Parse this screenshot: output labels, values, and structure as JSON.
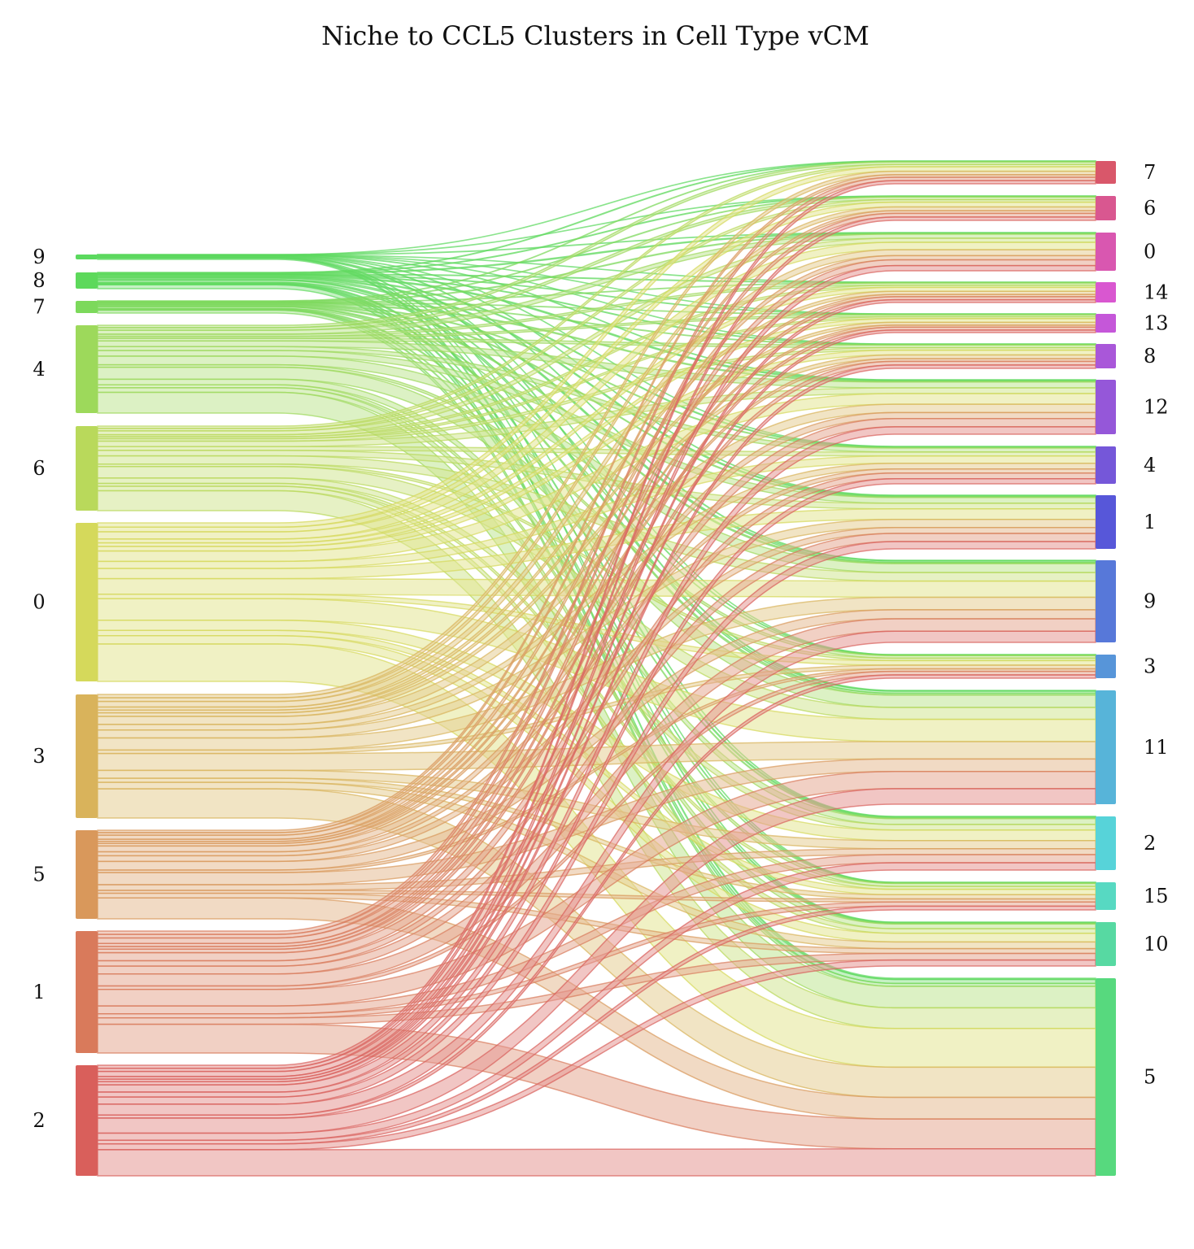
{
  "title": "Niche to CCL5 Clusters in Cell Type vCM",
  "diagram": {
    "type": "sankey",
    "left_nodes": [
      {
        "id": "9",
        "label": "9",
        "color": "#5bd95e"
      },
      {
        "id": "8",
        "label": "8",
        "color": "#5dd95b"
      },
      {
        "id": "7",
        "label": "7",
        "color": "#7cd95b"
      },
      {
        "id": "4",
        "label": "4",
        "color": "#9dd95b"
      },
      {
        "id": "6",
        "label": "6",
        "color": "#b9d95b"
      },
      {
        "id": "0",
        "label": "0",
        "color": "#d5d95b"
      },
      {
        "id": "3",
        "label": "3",
        "color": "#d9b35b"
      },
      {
        "id": "5",
        "label": "5",
        "color": "#d9985b"
      },
      {
        "id": "1",
        "label": "1",
        "color": "#d97a5b"
      },
      {
        "id": "2",
        "label": "2",
        "color": "#d95f5b"
      }
    ],
    "right_nodes": [
      {
        "id": "7",
        "label": "7",
        "color": "#d9576a"
      },
      {
        "id": "6",
        "label": "6",
        "color": "#d95790"
      },
      {
        "id": "0",
        "label": "0",
        "color": "#d957b0"
      },
      {
        "id": "14",
        "label": "14",
        "color": "#d957d0"
      },
      {
        "id": "13",
        "label": "13",
        "color": "#c557d9"
      },
      {
        "id": "8",
        "label": "8",
        "color": "#a957d9"
      },
      {
        "id": "12",
        "label": "12",
        "color": "#9557d9"
      },
      {
        "id": "4",
        "label": "4",
        "color": "#7557d9"
      },
      {
        "id": "1",
        "label": "1",
        "color": "#5757d9"
      },
      {
        "id": "9",
        "label": "9",
        "color": "#5778d9"
      },
      {
        "id": "3",
        "label": "3",
        "color": "#5795d9"
      },
      {
        "id": "11",
        "label": "11",
        "color": "#57b4d9"
      },
      {
        "id": "2",
        "label": "2",
        "color": "#57d3d9"
      },
      {
        "id": "15",
        "label": "15",
        "color": "#57d9c2"
      },
      {
        "id": "10",
        "label": "10",
        "color": "#57d9a2"
      },
      {
        "id": "5",
        "label": "5",
        "color": "#57d97e"
      }
    ]
  }
}
